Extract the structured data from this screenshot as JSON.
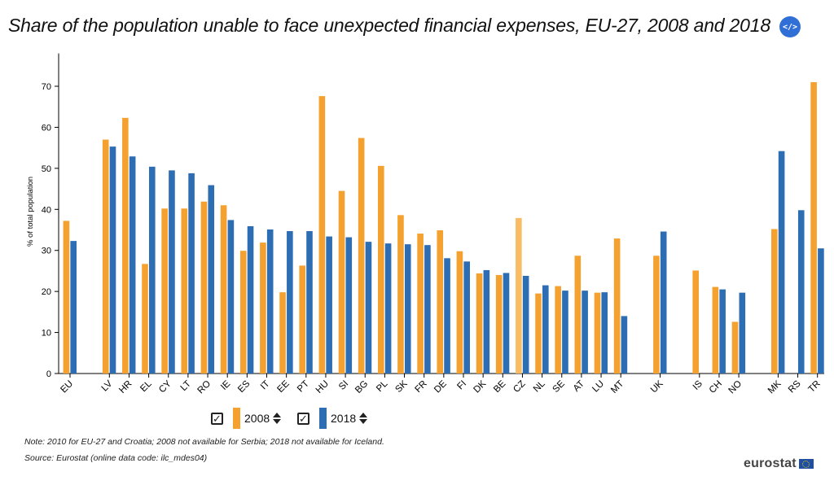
{
  "header": {
    "title": "Share of the population unable to face unexpected financial expenses, EU-27, 2008 and 2018",
    "embed_label": "</>"
  },
  "legend": {
    "items": [
      {
        "label": "2008",
        "checked": true,
        "color": "#f5a12f"
      },
      {
        "label": "2018",
        "checked": true,
        "color": "#2d6db4"
      }
    ]
  },
  "footer": {
    "note": "Note: 2010 for EU-27 and Croatia; 2008 not available for Serbia; 2018 not available for Iceland.",
    "source": "Source: Eurostat (online data code: ilc_mdes04)",
    "logo": "eurostat"
  },
  "chart_data": {
    "type": "bar",
    "title": "Share of the population unable to face unexpected financial expenses, EU-27, 2008 and 2018",
    "ylabel": "% of total population",
    "xlabel": "",
    "ylim": [
      0,
      78
    ],
    "yticks": [
      0,
      10,
      20,
      30,
      40,
      50,
      60,
      70
    ],
    "grid": false,
    "highlight_category": "CZ",
    "highlight_color": "#f9bc64",
    "categories": [
      "EU",
      "LV",
      "HR",
      "EL",
      "CY",
      "LT",
      "RO",
      "IE",
      "ES",
      "IT",
      "EE",
      "PT",
      "HU",
      "SI",
      "BG",
      "PL",
      "SK",
      "FR",
      "DE",
      "FI",
      "DK",
      "BE",
      "CZ",
      "NL",
      "SE",
      "AT",
      "LU",
      "MT",
      "UK",
      "IS",
      "CH",
      "NO",
      "MK",
      "RS",
      "TR"
    ],
    "groups": [
      [
        "EU"
      ],
      [
        "LV",
        "HR",
        "EL",
        "CY",
        "LT",
        "RO",
        "IE",
        "ES",
        "IT",
        "EE",
        "PT",
        "HU",
        "SI",
        "BG",
        "PL",
        "SK",
        "FR",
        "DE",
        "FI",
        "DK",
        "BE",
        "CZ",
        "NL",
        "SE",
        "AT",
        "LU",
        "MT"
      ],
      [
        "UK"
      ],
      [
        "IS",
        "CH",
        "NO"
      ],
      [
        "MK",
        "RS",
        "TR"
      ]
    ],
    "series": [
      {
        "name": "2008",
        "color": "#f5a12f",
        "values": [
          37.2,
          57.0,
          62.3,
          26.7,
          40.2,
          40.2,
          41.9,
          41.0,
          29.9,
          31.9,
          19.8,
          26.3,
          67.6,
          44.5,
          57.4,
          50.6,
          38.6,
          34.1,
          34.9,
          29.8,
          24.4,
          24.0,
          37.9,
          19.5,
          21.3,
          28.7,
          19.7,
          32.9,
          28.7,
          25.1,
          21.1,
          12.6,
          35.2,
          null,
          71.0
        ]
      },
      {
        "name": "2018",
        "color": "#2d6db4",
        "values": [
          32.3,
          55.3,
          52.9,
          50.4,
          49.5,
          48.8,
          45.9,
          37.4,
          35.9,
          35.1,
          34.7,
          34.7,
          33.4,
          33.2,
          32.1,
          31.7,
          31.5,
          31.3,
          28.1,
          27.3,
          25.2,
          24.5,
          23.8,
          21.5,
          20.2,
          20.2,
          19.8,
          14.0,
          34.6,
          null,
          20.5,
          19.7,
          54.2,
          39.8,
          30.5
        ]
      }
    ]
  }
}
